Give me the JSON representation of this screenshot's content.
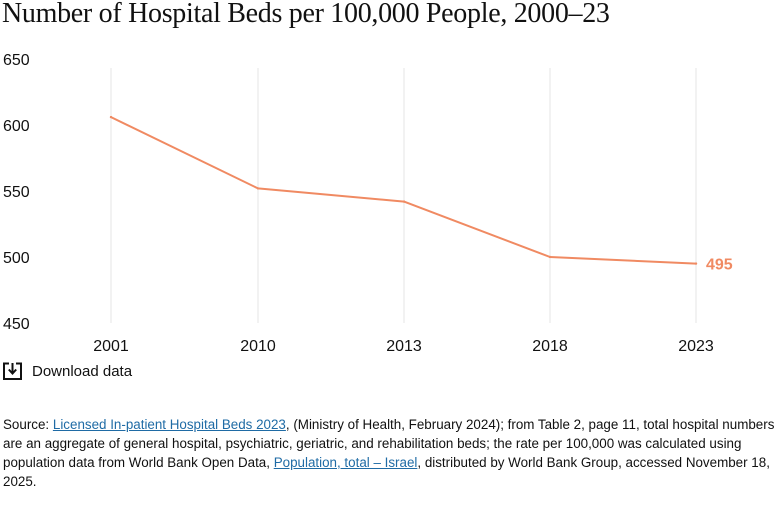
{
  "title": "Number of Hospital Beds per 100,000 People, 2000–23",
  "download": {
    "label": "Download data",
    "icon": "download-icon"
  },
  "source": {
    "prefix": "Source: ",
    "link1": "Licensed In-patient Hospital Beds 2023",
    "middle": ", (Ministry of Health, February 2024); from Table 2, page 11, total hospital numbers are an aggregate of general hospital, psychiatric, geriatric, and rehabilitation beds; the rate per 100,000 was calculated using population data from World Bank Open Data, ",
    "link2": "Population, total – Israel",
    "suffix": ", distributed by World Bank Group, accessed November 18, 2025."
  },
  "colors": {
    "line": "#f08a62",
    "grid": "#e6e6e6",
    "link": "#1f6ba5"
  },
  "chart_data": {
    "type": "line",
    "categories": [
      "2001",
      "2010",
      "2013",
      "2018",
      "2023"
    ],
    "values": [
      606,
      552,
      542,
      500,
      495
    ],
    "end_label": "495",
    "yticks": [
      450,
      500,
      550,
      600,
      650
    ],
    "ylim": [
      450,
      650
    ],
    "grid": "vertical",
    "title": "Number of Hospital Beds per 100,000 People, 2000–23",
    "xlabel": "",
    "ylabel": ""
  }
}
